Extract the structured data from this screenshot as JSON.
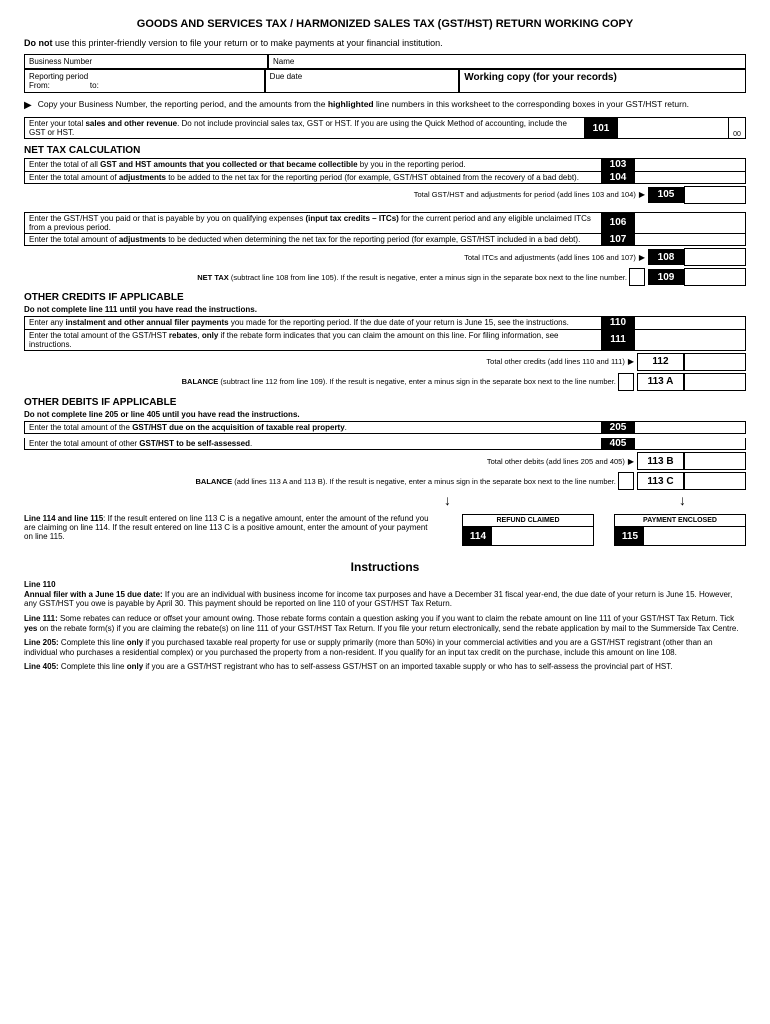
{
  "title": "GOODS AND SERVICES TAX / HARMONIZED SALES TAX (GST/HST) RETURN WORKING COPY",
  "warning": "Do not use this printer-friendly version to file your return or to make payments at your financial institution.",
  "header": {
    "bn": "Business Number",
    "name": "Name",
    "period": "Reporting period",
    "from": "From:",
    "to": "to:",
    "due": "Due date",
    "wc": "Working copy (for your records)"
  },
  "copy_note": "Copy your Business Number, the reporting period, and the amounts from the highlighted line numbers in this worksheet to the corresponding boxes in your GST/HST return.",
  "l101": {
    "n": "101",
    "t": "Enter your total <b>sales and other revenue</b>. Do not include provincial sales tax, GST or HST. If you are using the Quick Method of accounting, include the GST or HST.",
    "cents": "00"
  },
  "s_net": "NET TAX CALCULATION",
  "l103": {
    "n": "103",
    "t": "Enter the total of all <b>GST and HST amounts that you collected or that became collectible</b> by you in the reporting period."
  },
  "l104": {
    "n": "104",
    "t": "Enter the total amount of <b>adjustments</b> to be added to the net tax for the reporting period (for example, GST/HST obtained from the recovery of a bad debt)."
  },
  "st105": {
    "n": "105",
    "t": "Total GST/HST and adjustments for period (add lines 103 and 104)"
  },
  "l106": {
    "n": "106",
    "t": "Enter the GST/HST you paid or that is payable by you on qualifying expenses <b>(input tax credits – ITCs)</b> for the current period and any eligible unclaimed ITCs from a previous period."
  },
  "l107": {
    "n": "107",
    "t": "Enter the total amount of <b>adjustments</b> to be deducted when determining the net tax for the reporting period (for example, GST/HST included in a bad debt)."
  },
  "st108": {
    "n": "108",
    "t": "Total ITCs and adjustments (add lines 106 and 107)"
  },
  "st109": {
    "n": "109",
    "t": "<b>NET TAX</b> (subtract line 108 from line 105). If the result is negative, enter a minus sign in the separate box next to the line number."
  },
  "s_credits": "OTHER CREDITS IF APPLICABLE",
  "cr_note": "Do not complete line 111 until you have read the instructions.",
  "l110": {
    "n": "110",
    "t": "Enter any <b>instalment and other annual filer payments</b> you made for the reporting period. If the due date of your return is June 15, see the instructions."
  },
  "l111": {
    "n": "111",
    "t": "Enter the total amount of the GST/HST <b>rebates</b>, <b>only</b> if the rebate form indicates that you can claim the amount on this line. For filing information, see instructions."
  },
  "st112": {
    "n": "112",
    "t": "Total other credits (add lines 110 and 111)"
  },
  "st113a": {
    "n": "113 A",
    "t": "<b>BALANCE</b> (subtract line 112 from line 109). If the result is negative, enter a minus sign in the separate box next to the line number."
  },
  "s_debits": "OTHER DEBITS IF APPLICABLE",
  "db_note": "Do not complete line 205 or line 405 until you have read the instructions.",
  "l205": {
    "n": "205",
    "t": "Enter the total amount of the <b>GST/HST due on the acquisition of taxable real property</b>."
  },
  "l405": {
    "n": "405",
    "t": "Enter the total amount of other <b>GST/HST to be self-assessed</b>."
  },
  "st113b": {
    "n": "113 B",
    "t": "Total other debits (add lines 205 and 405)"
  },
  "st113c": {
    "n": "113 C",
    "t": "<b>BALANCE</b> (add lines 113 A and 113 B). If the result is negative, enter a minus sign in the separate box next to the line number."
  },
  "final_note": "<b>Line 114 and line 115</b>: If the result entered on line 113 C is a negative amount, enter the amount of the refund you are claiming on line 114. If the result entered on line 113 C is a positive amount, enter the amount of your payment on line 115.",
  "refund": {
    "n": "114",
    "h": "REFUND CLAIMED"
  },
  "payment": {
    "n": "115",
    "h": "PAYMENT ENCLOSED"
  },
  "instr_title": "Instructions",
  "instr": {
    "p1": "<b>Line 110</b><br><b>Annual filer with a June 15 due date:</b> If you are an individual with business income for income tax purposes and have a December 31 fiscal year-end, the due date of your return is June 15. However, any GST/HST you owe is payable by April 30. This payment should be reported on line 110 of your GST/HST Tax Return.",
    "p2": "<b>Line 111:</b> Some rebates can reduce or offset your amount owing. Those rebate forms contain a question asking you if you want to claim the rebate amount on line 111 of your GST/HST Tax Return. Tick <b>yes</b> on the rebate form(s) if you are claiming the rebate(s) on line 111 of your GST/HST Tax Return. If you file your return electronically, send the rebate application by mail to the Summerside Tax Centre.",
    "p3": "<b>Line 205:</b> Complete this line <b>only</b> if you purchased taxable real property for use or supply primarily (more than 50%) in your commercial activities and you are a GST/HST registrant (other than an individual who purchases a residential complex) or you purchased the property from a non-resident. If you qualify for an input tax credit on the purchase, include this amount on line 108.",
    "p4": "<b>Line 405:</b> Complete this line <b>only</b> if you are a GST/HST registrant who has to self-assess GST/HST on an imported taxable supply or who has to self-assess the provincial part of HST."
  }
}
